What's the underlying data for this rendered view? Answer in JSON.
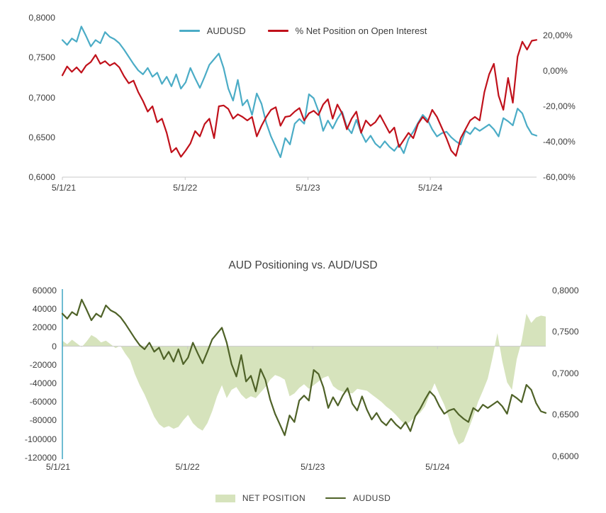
{
  "chart_data": [
    {
      "type": "line",
      "title": "",
      "legend_position": "top",
      "x_axis": {
        "tick_labels": [
          "5/1/21",
          "5/1/22",
          "5/1/23",
          "5/1/24"
        ],
        "tick_positions_pct": [
          0,
          25.9,
          51.8,
          77.6
        ]
      },
      "left_axis": {
        "ticks": [
          "0,8000",
          "0,7500",
          "0,7000",
          "0,6500",
          "0,6000"
        ],
        "tick_values": [
          0.8,
          0.75,
          0.7,
          0.65,
          0.6
        ],
        "min": 0.6,
        "max": 0.8
      },
      "right_axis": {
        "ticks": [
          "20,00%",
          "0,00%",
          "-20,00%",
          "-40,00%",
          "-60,00%"
        ],
        "tick_values": [
          20,
          0,
          -20,
          -40,
          -60
        ],
        "min": -60,
        "max": 30
      },
      "series": [
        {
          "name": "AUDUSD",
          "axis": "left",
          "color": "#4BACC6",
          "values": [
            0.772,
            0.766,
            0.774,
            0.77,
            0.789,
            0.777,
            0.764,
            0.772,
            0.768,
            0.782,
            0.776,
            0.773,
            0.768,
            0.76,
            0.751,
            0.742,
            0.734,
            0.729,
            0.737,
            0.726,
            0.731,
            0.717,
            0.726,
            0.714,
            0.729,
            0.711,
            0.719,
            0.737,
            0.724,
            0.712,
            0.726,
            0.741,
            0.748,
            0.755,
            0.737,
            0.711,
            0.696,
            0.722,
            0.69,
            0.697,
            0.678,
            0.705,
            0.692,
            0.668,
            0.651,
            0.638,
            0.625,
            0.649,
            0.641,
            0.667,
            0.673,
            0.667,
            0.704,
            0.699,
            0.683,
            0.658,
            0.671,
            0.661,
            0.673,
            0.682,
            0.663,
            0.655,
            0.672,
            0.656,
            0.644,
            0.652,
            0.642,
            0.637,
            0.645,
            0.638,
            0.633,
            0.641,
            0.63,
            0.648,
            0.657,
            0.668,
            0.678,
            0.672,
            0.66,
            0.651,
            0.655,
            0.657,
            0.65,
            0.645,
            0.641,
            0.658,
            0.654,
            0.662,
            0.658,
            0.662,
            0.666,
            0.66,
            0.651,
            0.674,
            0.67,
            0.665,
            0.686,
            0.68,
            0.664,
            0.654,
            0.652
          ]
        },
        {
          "name": "% Net Position on Open Interest",
          "axis": "right",
          "color": "#C0111B",
          "values": [
            -2.5,
            2.5,
            -0.5,
            2,
            -1,
            3,
            5,
            9,
            4,
            5.5,
            3,
            4.5,
            2,
            -3,
            -7,
            -5.5,
            -12,
            -17,
            -23,
            -20,
            -29,
            -27,
            -35,
            -46,
            -43.5,
            -48.5,
            -45,
            -41,
            -34,
            -37,
            -30,
            -27,
            -38,
            -20,
            -19.5,
            -21.5,
            -27,
            -24.5,
            -26,
            -28,
            -26,
            -37,
            -31,
            -26,
            -22,
            -20.5,
            -31,
            -26,
            -25.5,
            -23,
            -21,
            -28,
            -24,
            -22.5,
            -25,
            -19,
            -16,
            -27,
            -19,
            -24,
            -33,
            -27,
            -23,
            -35,
            -28,
            -31,
            -29,
            -25,
            -30,
            -35,
            -32,
            -43,
            -39,
            -35,
            -38,
            -30,
            -26,
            -29,
            -22,
            -26,
            -32,
            -38,
            -45,
            -48,
            -38,
            -33,
            -28,
            -26,
            -28,
            -12,
            -2,
            4,
            -14,
            -22,
            -4,
            -18,
            8,
            16.5,
            12,
            17,
            17.5
          ]
        }
      ]
    },
    {
      "type": "area+line",
      "title": "AUD Positioning vs. AUD/USD",
      "legend_position": "bottom",
      "x_axis": {
        "tick_labels": [
          "5/1/21",
          "5/1/22",
          "5/1/23",
          "5/1/24"
        ],
        "tick_positions_pct": [
          0,
          25.9,
          51.8,
          77.6
        ]
      },
      "left_axis": {
        "ticks": [
          "60000",
          "40000",
          "20000",
          "0",
          "-20000",
          "-40000",
          "-60000",
          "-80000",
          "-100000",
          "-120000"
        ],
        "tick_values": [
          60000,
          40000,
          20000,
          0,
          -20000,
          -40000,
          -60000,
          -80000,
          -100000,
          -120000
        ],
        "min": -120000,
        "max": 60000
      },
      "right_axis": {
        "ticks": [
          "0,8000",
          "0,7500",
          "0,7000",
          "0,6500",
          "0,6000"
        ],
        "tick_values": [
          0.8,
          0.75,
          0.7,
          0.65,
          0.6
        ],
        "min": 0.6,
        "max": 0.8
      },
      "series": [
        {
          "name": "NET POSITION",
          "type": "area",
          "axis": "left",
          "color": "#D6E3BC",
          "values": [
            6000,
            2000,
            7000,
            3000,
            -1000,
            5000,
            12000,
            9000,
            4000,
            6000,
            2000,
            -2000,
            500,
            -8000,
            -15000,
            -30000,
            -42000,
            -52000,
            -64000,
            -76000,
            -84000,
            -88000,
            -86000,
            -89000,
            -87000,
            -80000,
            -74000,
            -83000,
            -88000,
            -91000,
            -83000,
            -70000,
            -54000,
            -42000,
            -56000,
            -47000,
            -44000,
            -52000,
            -57000,
            -54000,
            -56000,
            -50000,
            -44000,
            -36000,
            -31000,
            -33000,
            -36000,
            -54000,
            -51000,
            -45000,
            -41000,
            -46000,
            -42000,
            -38000,
            -34000,
            -32000,
            -43000,
            -47000,
            -49000,
            -50000,
            -51000,
            -46000,
            -47000,
            -48000,
            -52000,
            -56000,
            -60000,
            -65000,
            -69000,
            -74000,
            -80000,
            -85000,
            -81000,
            -76000,
            -72000,
            -65000,
            -52000,
            -40000,
            -52000,
            -63000,
            -78000,
            -95000,
            -106000,
            -103000,
            -90000,
            -76000,
            -60000,
            -48000,
            -35000,
            -12000,
            14000,
            -16000,
            -39000,
            -47000,
            -14000,
            5000,
            35000,
            25000,
            31000,
            33000,
            32000
          ]
        },
        {
          "name": "AUDUSD",
          "type": "line",
          "axis": "right",
          "color": "#4F6228",
          "values": [
            0.772,
            0.766,
            0.774,
            0.77,
            0.789,
            0.777,
            0.764,
            0.772,
            0.768,
            0.782,
            0.776,
            0.773,
            0.768,
            0.76,
            0.751,
            0.742,
            0.734,
            0.729,
            0.737,
            0.726,
            0.731,
            0.717,
            0.726,
            0.714,
            0.729,
            0.711,
            0.719,
            0.737,
            0.724,
            0.712,
            0.726,
            0.741,
            0.748,
            0.755,
            0.737,
            0.711,
            0.696,
            0.722,
            0.69,
            0.697,
            0.678,
            0.705,
            0.692,
            0.668,
            0.651,
            0.638,
            0.625,
            0.649,
            0.641,
            0.667,
            0.673,
            0.667,
            0.704,
            0.699,
            0.683,
            0.658,
            0.671,
            0.661,
            0.673,
            0.682,
            0.663,
            0.655,
            0.672,
            0.656,
            0.644,
            0.652,
            0.642,
            0.637,
            0.645,
            0.638,
            0.633,
            0.641,
            0.63,
            0.648,
            0.657,
            0.668,
            0.678,
            0.672,
            0.66,
            0.651,
            0.655,
            0.657,
            0.65,
            0.645,
            0.641,
            0.658,
            0.654,
            0.662,
            0.658,
            0.662,
            0.666,
            0.66,
            0.651,
            0.674,
            0.67,
            0.665,
            0.686,
            0.68,
            0.664,
            0.654,
            0.652
          ]
        }
      ]
    }
  ],
  "colors": {
    "audusd_blue": "#4BACC6",
    "net_position_red": "#C0111B",
    "net_area_green": "#D6E3BC",
    "audusd_olive": "#4F6228",
    "axis_line_gray": "#C9C9C9",
    "text_gray": "#3C3C3C"
  }
}
